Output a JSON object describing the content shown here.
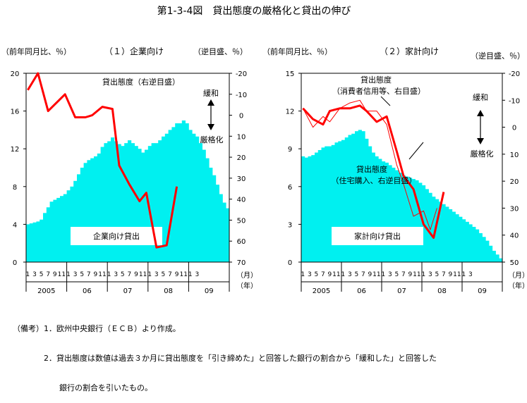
{
  "title": "第1-3-4図　貸出態度の厳格化と貸出の伸び",
  "notes": [
    "（備考）1．欧州中央銀行（ＥＣＢ）より作成。",
    "　　　　2．貸出態度は数値は過去３か月に貸出態度を「引き締めた」と回答した銀行の割合から「緩和した」と回答した",
    "　　　　　　銀行の割合を引いたもの。"
  ],
  "colors": {
    "loan_fill": "#00f0f0",
    "attitude": "#ff0000",
    "axis": "#000000"
  },
  "chart_data": [
    {
      "type": "bar",
      "subtitle": "（１）企業向け",
      "ylabel_left": "（前年同月比、％）",
      "ylabel_right": "（逆目盛、％）",
      "x_unit_month": "（月）",
      "x_unit_year": "（年）",
      "month_tick_labels": [
        "1",
        "3",
        "5",
        "7",
        "9",
        "11",
        "1",
        "3",
        "5",
        "7",
        "9",
        "11",
        "1",
        "3",
        "5",
        "7",
        "9",
        "11",
        "1",
        "3",
        "5",
        "7",
        "9",
        "11",
        "1",
        "3"
      ],
      "year_labels": [
        "2005",
        "06",
        "07",
        "08",
        "09"
      ],
      "yticks_left": [
        "0",
        "4",
        "8",
        "12",
        "16",
        "20"
      ],
      "yticks_right": [
        "-20",
        "-10",
        "0",
        "10",
        "20",
        "30",
        "40",
        "50",
        "60",
        "70"
      ],
      "ylim_left": [
        0,
        20
      ],
      "ylim_right_inverted": [
        -20,
        70
      ],
      "loan_label": "企業向け貸出",
      "attitude_label": "貸出態度（右逆目盛）",
      "arrow_up_label": "緩和",
      "arrow_down_label": "厳格化",
      "loan_growth": [
        4.0,
        4.1,
        4.2,
        4.3,
        4.5,
        5.2,
        5.8,
        6.4,
        6.6,
        6.8,
        7.0,
        7.2,
        7.6,
        8.0,
        8.6,
        9.3,
        10.0,
        10.5,
        10.8,
        11.0,
        11.2,
        11.5,
        12.2,
        12.6,
        12.8,
        13.2,
        12.8,
        12.5,
        12.3,
        12.6,
        12.9,
        12.6,
        12.3,
        12.0,
        11.6,
        11.9,
        12.3,
        12.6,
        12.6,
        12.9,
        13.3,
        13.6,
        14.0,
        14.3,
        14.7,
        14.7,
        15.0,
        14.7,
        14.0,
        13.6,
        13.3,
        12.6,
        11.9,
        11.0,
        10.0,
        9.2,
        8.2,
        7.2,
        6.3,
        5.7
      ],
      "attitude_series": [
        [
          0,
          -12
        ],
        [
          3,
          -20
        ],
        [
          6,
          -2
        ],
        [
          11,
          -10
        ],
        [
          14,
          1
        ],
        [
          17,
          1
        ],
        [
          19,
          0
        ],
        [
          22,
          -4
        ],
        [
          25,
          -3
        ],
        [
          27,
          24
        ],
        [
          30,
          33
        ],
        [
          33,
          41
        ],
        [
          35,
          37
        ],
        [
          38,
          63
        ],
        [
          41,
          62
        ],
        [
          44,
          34
        ]
      ]
    },
    {
      "type": "bar",
      "subtitle": "（２）家計向け",
      "ylabel_left": "（前年同月比、％）",
      "ylabel_right": "（逆目盛、％）",
      "x_unit_month": "（月）",
      "x_unit_year": "（年）",
      "month_tick_labels": [
        "1",
        "3",
        "5",
        "7",
        "9",
        "11",
        "1",
        "3",
        "5",
        "7",
        "9",
        "11",
        "1",
        "3",
        "5",
        "7",
        "9",
        "11",
        "1",
        "3",
        "5",
        "7",
        "9",
        "11",
        "1",
        "3"
      ],
      "year_labels": [
        "2005",
        "06",
        "07",
        "08",
        "09"
      ],
      "yticks_left": [
        "0",
        "3",
        "6",
        "9",
        "12",
        "15"
      ],
      "yticks_right": [
        "-20",
        "-10",
        "0",
        "10",
        "20",
        "30",
        "40",
        "50"
      ],
      "ylim_left": [
        0,
        15
      ],
      "ylim_right_inverted": [
        -20,
        50
      ],
      "loan_label": "家計向け貸出",
      "attitude_label_1": "貸出態度",
      "attitude_label_1b": "（消費者信用等、右目盛）",
      "attitude_label_2": "貸出態度",
      "attitude_label_2b": "（住宅購入、右逆目盛）",
      "arrow_up_label": "緩和",
      "arrow_down_label": "厳格化",
      "loan_growth": [
        8.4,
        8.3,
        8.4,
        8.5,
        8.7,
        8.9,
        9.1,
        9.2,
        9.2,
        9.3,
        9.5,
        9.6,
        9.7,
        9.9,
        10.1,
        10.2,
        10.4,
        10.5,
        10.4,
        9.8,
        9.2,
        8.7,
        8.4,
        8.2,
        8.0,
        7.9,
        7.7,
        7.5,
        7.3,
        7.1,
        6.9,
        6.8,
        6.7,
        6.6,
        6.5,
        6.3,
        6.1,
        5.8,
        5.5,
        5.2,
        5.0,
        4.8,
        4.6,
        4.4,
        4.2,
        4.0,
        3.8,
        3.6,
        3.4,
        3.2,
        3.0,
        2.8,
        2.6,
        2.3,
        2.0,
        1.7,
        1.3,
        0.9,
        0.6,
        0.3
      ],
      "consumer_credit_attitude": [
        [
          0,
          -7
        ],
        [
          3,
          -3
        ],
        [
          6,
          -1
        ],
        [
          8,
          -6
        ],
        [
          11,
          -7
        ],
        [
          14,
          -7
        ],
        [
          17,
          -8
        ],
        [
          19,
          -6
        ],
        [
          22,
          -2
        ],
        [
          25,
          -4
        ],
        [
          28,
          9
        ],
        [
          30,
          18
        ],
        [
          33,
          23
        ],
        [
          36,
          36
        ],
        [
          39,
          41
        ],
        [
          42,
          24
        ]
      ],
      "housing_attitude": [
        [
          0,
          -7
        ],
        [
          3,
          0
        ],
        [
          6,
          -4
        ],
        [
          8,
          -2
        ],
        [
          11,
          -7
        ],
        [
          14,
          -9
        ],
        [
          17,
          -10
        ],
        [
          19,
          -6
        ],
        [
          22,
          -6
        ],
        [
          25,
          -1
        ],
        [
          28,
          14
        ],
        [
          30,
          21
        ],
        [
          33,
          33
        ],
        [
          36,
          31
        ],
        [
          38,
          38
        ],
        [
          40,
          30
        ]
      ]
    }
  ]
}
